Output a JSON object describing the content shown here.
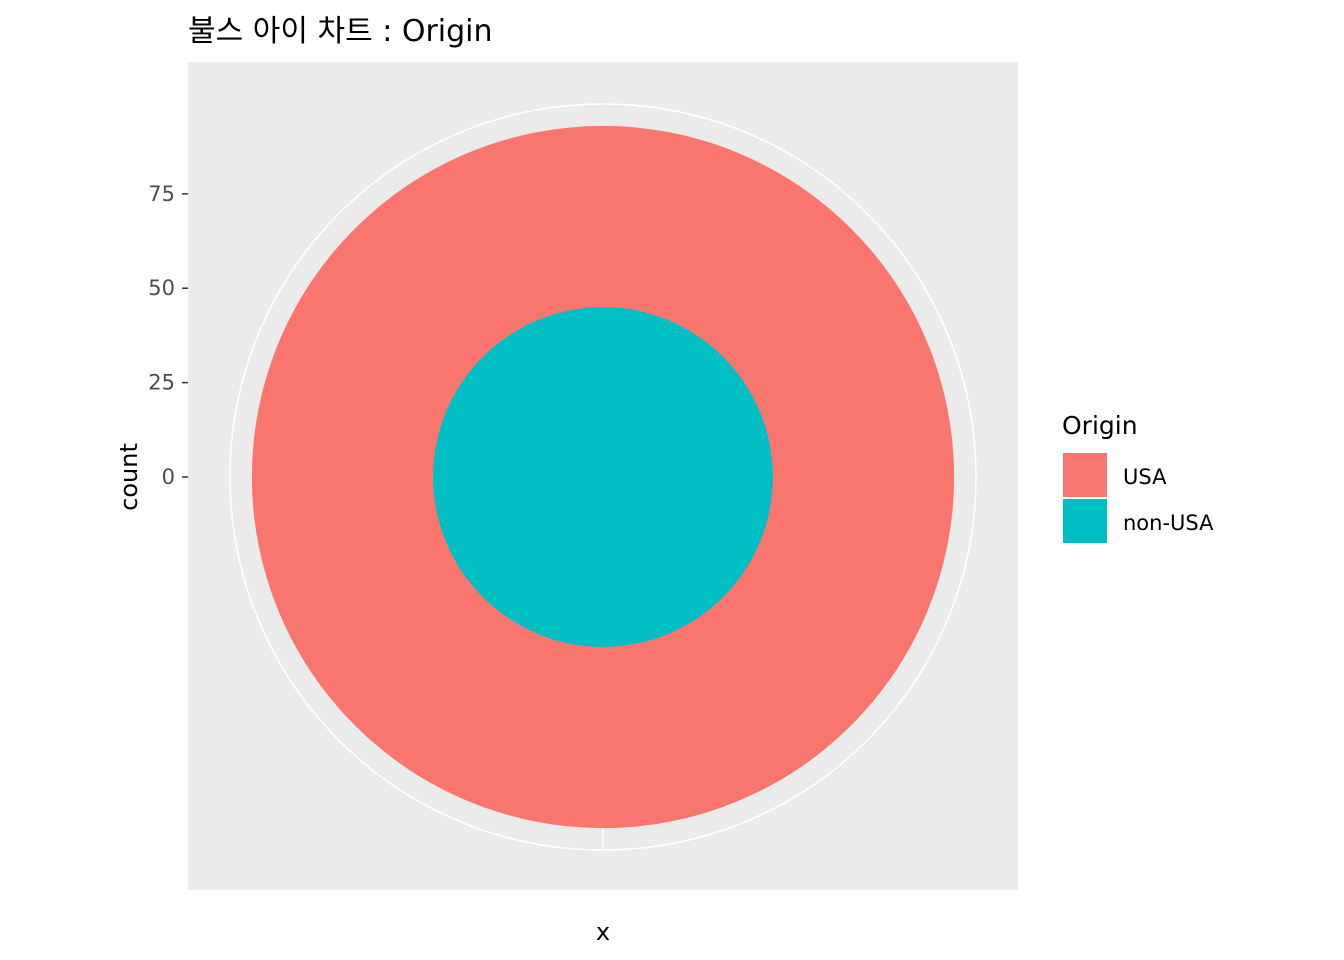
{
  "chart_data": {
    "type": "pie",
    "title": "불스 아이 차트 : Origin",
    "xlabel": "x",
    "ylabel": "count",
    "y_ticks": [
      "0",
      "25",
      "50",
      "75"
    ],
    "ylim": [
      0,
      98
    ],
    "legend": {
      "title": "Origin",
      "position": "right"
    },
    "series": [
      {
        "name": "USA",
        "value": 48,
        "color": "#F8766D"
      },
      {
        "name": "non-USA",
        "value": 45,
        "color": "#00BFC4"
      }
    ],
    "cumulative_counts": [
      45,
      93
    ],
    "panel_background": "#EBEBEB",
    "grid": true
  }
}
